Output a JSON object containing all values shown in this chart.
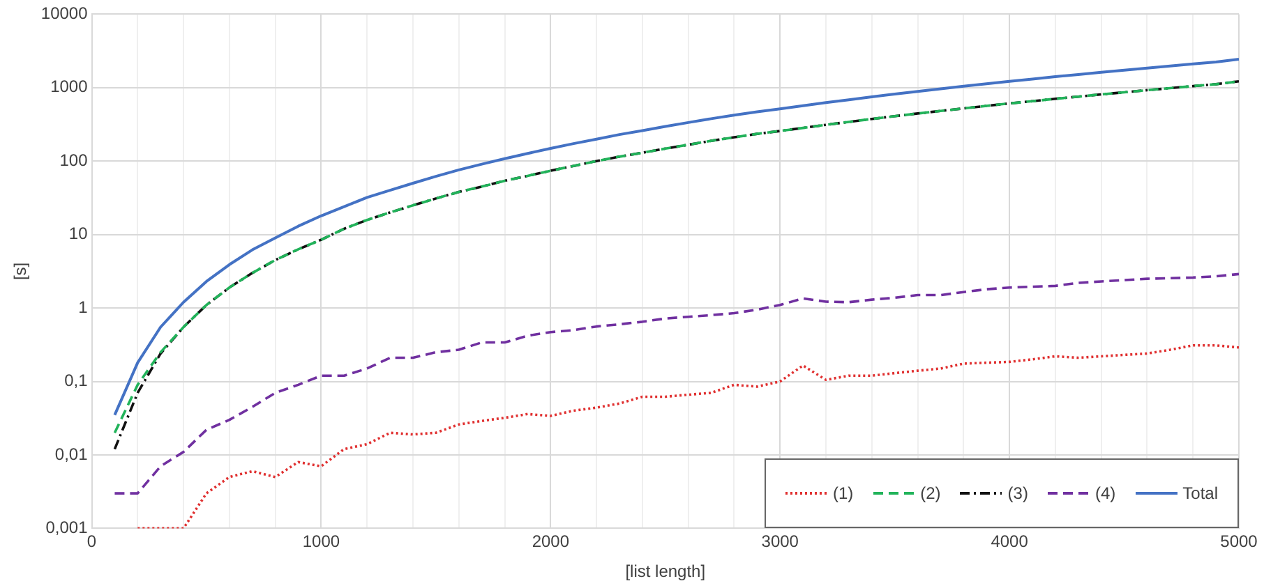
{
  "chart_data": {
    "type": "line",
    "xlabel": "[list length]",
    "ylabel": "[s]",
    "x": [
      100,
      200,
      300,
      400,
      500,
      600,
      700,
      800,
      900,
      1000,
      1100,
      1200,
      1300,
      1400,
      1500,
      1600,
      1700,
      1800,
      1900,
      2000,
      2100,
      2200,
      2300,
      2400,
      2500,
      2600,
      2700,
      2800,
      2900,
      3000,
      3100,
      3200,
      3300,
      3400,
      3500,
      3600,
      3700,
      3800,
      3900,
      4000,
      4100,
      4200,
      4300,
      4400,
      4500,
      4600,
      4700,
      4800,
      4900,
      5000
    ],
    "series": [
      {
        "name": "(1)",
        "color": "#e03030",
        "line_style": "dotted",
        "values": [
          null,
          0.001,
          0.001,
          0.001,
          0.003,
          0.005,
          0.006,
          0.005,
          0.008,
          0.007,
          0.012,
          0.014,
          0.02,
          0.019,
          0.02,
          0.026,
          0.029,
          0.032,
          0.036,
          0.034,
          0.04,
          0.044,
          0.05,
          0.062,
          0.062,
          0.066,
          0.07,
          0.09,
          0.085,
          0.1,
          0.165,
          0.105,
          0.12,
          0.12,
          0.13,
          0.14,
          0.15,
          0.175,
          0.18,
          0.185,
          0.2,
          0.22,
          0.21,
          0.22,
          0.23,
          0.24,
          0.27,
          0.31,
          0.31,
          0.29
        ]
      },
      {
        "name": "(2)",
        "color": "#21b35a",
        "line_style": "dashed",
        "values": [
          0.02,
          0.09,
          0.25,
          0.55,
          1.1,
          1.9,
          3,
          4.5,
          6.3,
          8.5,
          12,
          15.8,
          20,
          25,
          31,
          38,
          45,
          54,
          63,
          74,
          86,
          100,
          115,
          130,
          148,
          167,
          189,
          211,
          235,
          257,
          283,
          312,
          342,
          375,
          409,
          445,
          482,
          522,
          565,
          610,
          655,
          705,
          755,
          810,
          865,
          925,
          985,
          1050,
          1115,
          1220
        ]
      },
      {
        "name": "(3)",
        "color": "#111111",
        "line_style": "dashdot",
        "values": [
          0.012,
          0.07,
          0.24,
          0.55,
          1.1,
          1.9,
          3,
          4.5,
          6.3,
          8.5,
          12,
          15.8,
          20,
          25,
          31,
          38,
          45,
          54,
          63,
          74,
          86,
          100,
          115,
          130,
          148,
          167,
          189,
          211,
          235,
          257,
          283,
          312,
          342,
          375,
          409,
          445,
          482,
          522,
          565,
          610,
          655,
          705,
          755,
          810,
          865,
          925,
          985,
          1050,
          1115,
          1220
        ]
      },
      {
        "name": "(4)",
        "color": "#7030a0",
        "line_style": "dashed",
        "values": [
          0.003,
          0.003,
          0.007,
          0.011,
          0.022,
          0.03,
          0.045,
          0.07,
          0.09,
          0.12,
          0.12,
          0.15,
          0.21,
          0.21,
          0.25,
          0.27,
          0.34,
          0.34,
          0.42,
          0.47,
          0.5,
          0.56,
          0.6,
          0.65,
          0.72,
          0.76,
          0.8,
          0.85,
          0.95,
          1.1,
          1.35,
          1.22,
          1.2,
          1.3,
          1.38,
          1.5,
          1.5,
          1.65,
          1.8,
          1.9,
          1.95,
          2,
          2.2,
          2.3,
          2.4,
          2.5,
          2.55,
          2.6,
          2.7,
          2.9
        ]
      },
      {
        "name": "Total",
        "color": "#4472c4",
        "line_style": "solid",
        "values": [
          0.035,
          0.18,
          0.55,
          1.2,
          2.3,
          3.9,
          6.2,
          9,
          13,
          18,
          24,
          32,
          40,
          50,
          62,
          76,
          91,
          108,
          127,
          149,
          173,
          199,
          230,
          260,
          297,
          335,
          378,
          423,
          470,
          514,
          567,
          625,
          685,
          750,
          818,
          890,
          965,
          1045,
          1130,
          1220,
          1310,
          1410,
          1510,
          1620,
          1730,
          1850,
          1970,
          2100,
          2230,
          2440
        ]
      }
    ],
    "log": "y",
    "xlim": [
      0,
      5000
    ],
    "ylim": [
      0.001,
      10000
    ],
    "xticks": [
      0,
      {
        "value": 200,
        "label": null
      },
      {
        "value": 400,
        "label": null
      },
      {
        "value": 600,
        "label": null
      },
      {
        "value": 800,
        "label": null
      },
      1000,
      {
        "value": 1200,
        "label": null
      },
      {
        "value": 1400,
        "label": null
      },
      {
        "value": 1600,
        "label": null
      },
      {
        "value": 1800,
        "label": null
      },
      2000,
      {
        "value": 2200,
        "label": null
      },
      {
        "value": 2400,
        "label": null
      },
      {
        "value": 2600,
        "label": null
      },
      {
        "value": 2800,
        "label": null
      },
      3000,
      {
        "value": 3200,
        "label": null
      },
      {
        "value": 3400,
        "label": null
      },
      {
        "value": 3600,
        "label": null
      },
      {
        "value": 3800,
        "label": null
      },
      4000,
      {
        "value": 4200,
        "label": null
      },
      {
        "value": 4400,
        "label": null
      },
      {
        "value": 4600,
        "label": null
      },
      {
        "value": 4800,
        "label": null
      },
      5000
    ],
    "yticks": [
      {
        "value": 0.001,
        "label": "0,001"
      },
      {
        "value": 0.01,
        "label": "0,01"
      },
      {
        "value": 0.1,
        "label": "0,1"
      },
      1,
      10,
      100,
      1000,
      10000
    ],
    "grid": true,
    "legend": "bottom right",
    "marker": "none"
  }
}
